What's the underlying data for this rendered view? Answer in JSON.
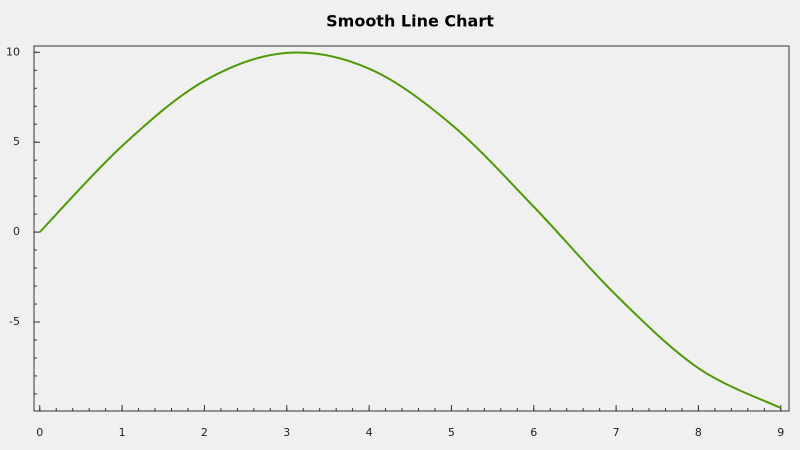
{
  "chart_data": {
    "type": "line",
    "title": "Smooth Line Chart",
    "x": [
      0,
      1,
      2,
      3,
      4,
      5,
      6,
      7,
      8,
      9
    ],
    "values": [
      0,
      4.79,
      8.41,
      9.97,
      9.09,
      5.98,
      1.41,
      -3.51,
      -7.57,
      -9.78
    ],
    "color": "#4e9a06",
    "smooth": true,
    "xlim": [
      -0.07,
      9.1
    ],
    "xticks": [
      0,
      1,
      2,
      3,
      4,
      5,
      6,
      7,
      8,
      9
    ],
    "x_minor_step": 0.2,
    "ylim": [
      -9.95,
      10.35
    ],
    "yticks": [
      -5,
      0,
      5,
      10
    ],
    "y_minor_step": 1
  }
}
